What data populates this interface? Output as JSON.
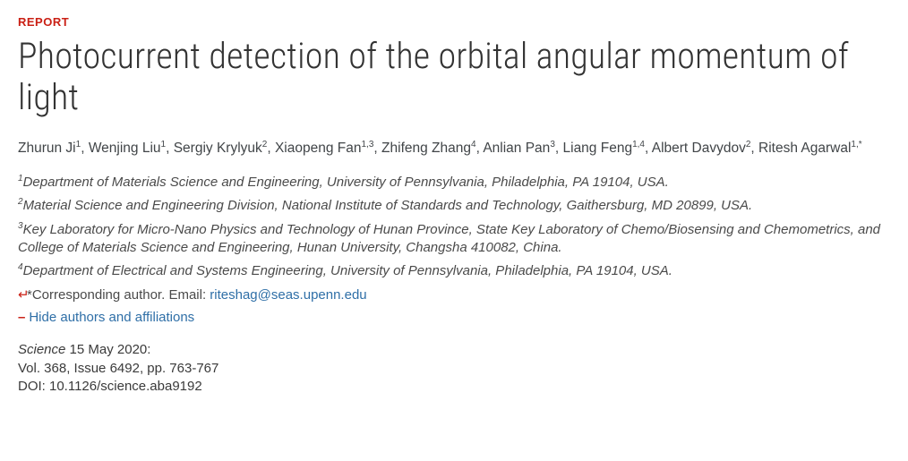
{
  "label": "REPORT",
  "title": "Photocurrent detection of the orbital angular momentum of light",
  "authors": [
    {
      "name": "Zhurun Ji",
      "sup": "1"
    },
    {
      "name": "Wenjing Liu",
      "sup": "1"
    },
    {
      "name": "Sergiy Krylyuk",
      "sup": "2"
    },
    {
      "name": "Xiaopeng Fan",
      "sup": "1,3"
    },
    {
      "name": "Zhifeng Zhang",
      "sup": "4"
    },
    {
      "name": "Anlian Pan",
      "sup": "3"
    },
    {
      "name": "Liang Feng",
      "sup": "1,4"
    },
    {
      "name": "Albert Davydov",
      "sup": "2"
    },
    {
      "name": "Ritesh Agarwal",
      "sup": "1,*"
    }
  ],
  "affiliations": [
    {
      "num": "1",
      "text": "Department of Materials Science and Engineering, University of Pennsylvania, Philadelphia, PA 19104, USA."
    },
    {
      "num": "2",
      "text": "Material Science and Engineering Division, National Institute of Standards and Technology, Gaithersburg, MD 20899, USA."
    },
    {
      "num": "3",
      "text": "Key Laboratory for Micro-Nano Physics and Technology of Hunan Province, State Key Laboratory of Chemo/Biosensing and Chemometrics, and College of Materials Science and Engineering, Hunan University, Changsha 410082, China."
    },
    {
      "num": "4",
      "text": "Department of Electrical and Systems Engineering, University of Pennsylvania, Philadelphia, PA 19104, USA."
    }
  ],
  "corresponding": {
    "symbol": "↵",
    "label": "*Corresponding author. Email: ",
    "email": "riteshag@seas.upenn.edu"
  },
  "hide_authors": "Hide authors and affiliations",
  "pub": {
    "journal": "Science",
    "date": "  15 May 2020:",
    "vol": "Vol. 368, Issue 6492, pp. 763-767",
    "doi": "DOI: 10.1126/science.aba9192"
  }
}
